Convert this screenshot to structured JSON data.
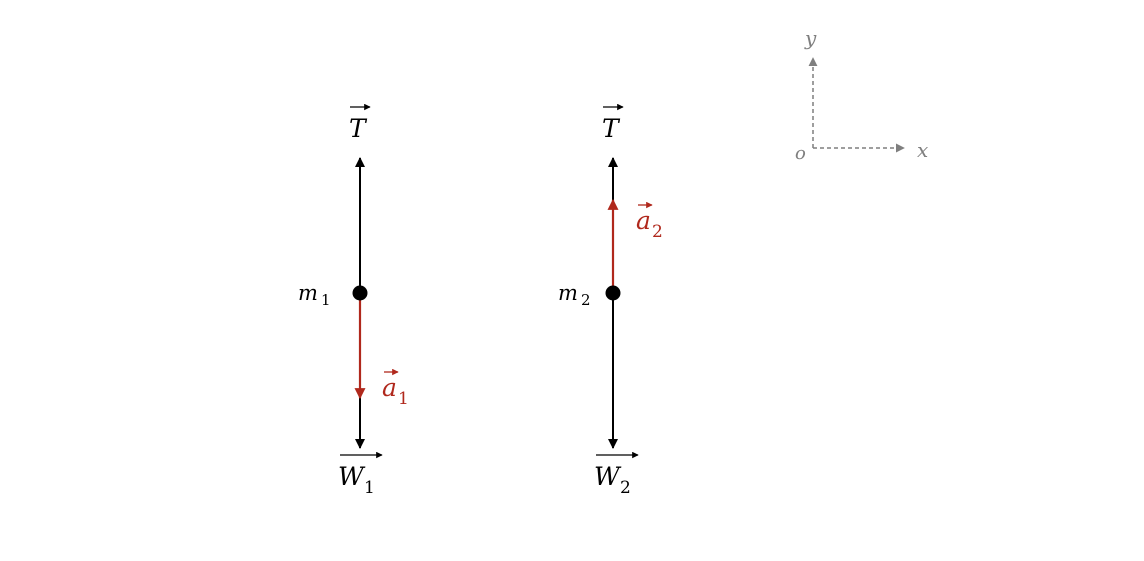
{
  "colors": {
    "force": "#000000",
    "acceleration": "#b0281c",
    "axes": "#7f7f7f"
  },
  "bodies": [
    {
      "mass_label": {
        "base": "m",
        "sub": "1"
      },
      "tension_label": "T",
      "weight_label": {
        "base": "W",
        "sub": "1"
      },
      "acceleration_label": {
        "base": "a",
        "sub": "1"
      },
      "acceleration_direction": "down"
    },
    {
      "mass_label": {
        "base": "m",
        "sub": "2"
      },
      "tension_label": "T",
      "weight_label": {
        "base": "W",
        "sub": "2"
      },
      "acceleration_label": {
        "base": "a",
        "sub": "2"
      },
      "acceleration_direction": "up"
    }
  ],
  "axes": {
    "origin_label": "o",
    "x_label": "x",
    "y_label": "y"
  }
}
